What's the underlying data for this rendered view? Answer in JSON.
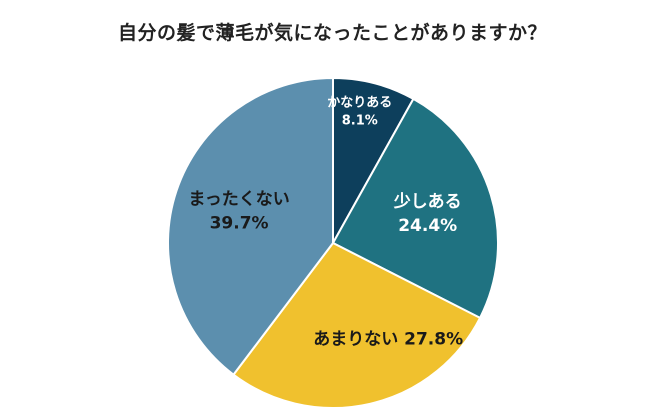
{
  "chart_data": {
    "type": "pie",
    "title": "自分の髪で薄毛が気になったことがありますか？",
    "slices": [
      {
        "label": "かなりある",
        "value": 8.1,
        "value_text": "8.1%",
        "color": "#0d3f5c",
        "text_color": "#ffffff",
        "layout": "two-line",
        "size": "small"
      },
      {
        "label": "少しある",
        "value": 24.4,
        "value_text": "24.4%",
        "color": "#1f7281",
        "text_color": "#ffffff",
        "layout": "two-line",
        "size": "large"
      },
      {
        "label": "あまりない",
        "value": 27.8,
        "value_text": "27.8%",
        "color": "#f0c12e",
        "text_color": "#1a1a1a",
        "layout": "one-line",
        "size": "large"
      },
      {
        "label": "まったくない",
        "value": 39.7,
        "value_text": "39.7%",
        "color": "#5c8fae",
        "text_color": "#1a1a1a",
        "layout": "two-line",
        "size": "large"
      }
    ],
    "start_angle": "12 o'clock",
    "direction": "clockwise",
    "legend": "none",
    "slice_border_color": "#ffffff"
  }
}
